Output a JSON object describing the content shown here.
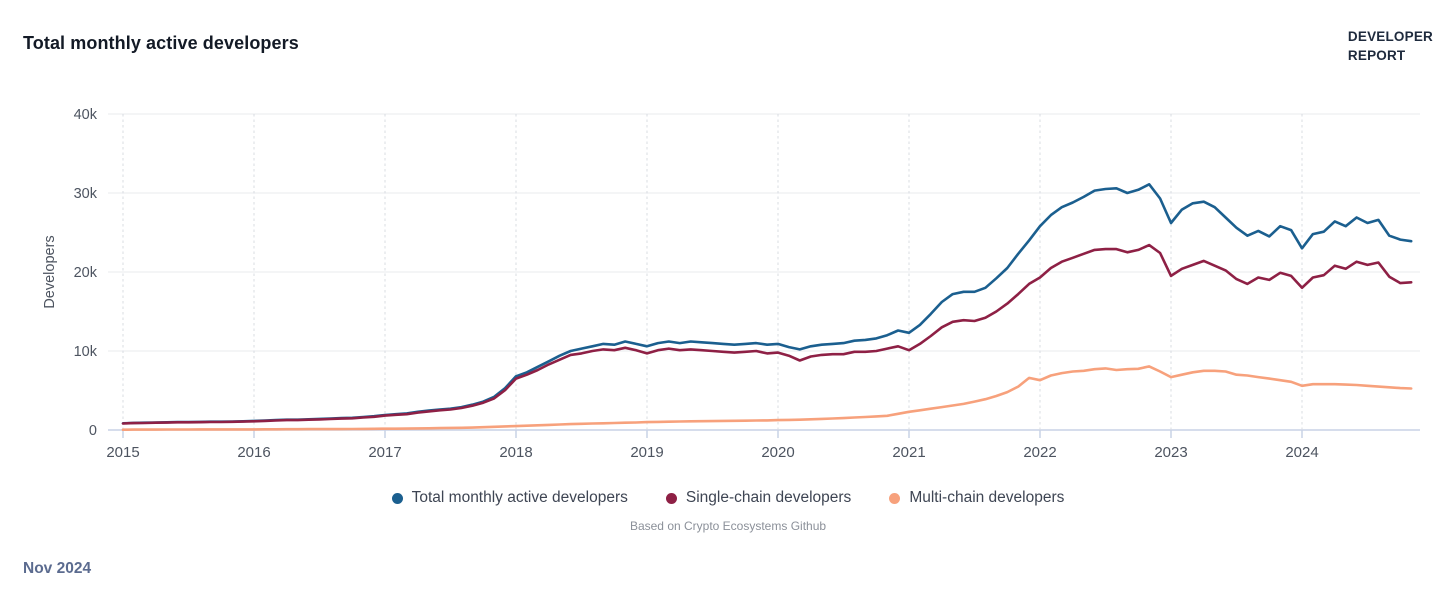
{
  "page": {
    "title": "Total monthly active developers",
    "footer_date": "Nov 2024"
  },
  "logo": {
    "line1": "DEVELOPER",
    "line2": "REPORT"
  },
  "caption": "Based on Crypto Ecosystems Github",
  "legend": {
    "items": [
      {
        "label": "Total monthly active developers",
        "color": "#1b5f8f"
      },
      {
        "label": "Single-chain developers",
        "color": "#8e2045"
      },
      {
        "label": "Multi-chain developers",
        "color": "#f7a17c"
      }
    ]
  },
  "chart_data": {
    "type": "line",
    "title": "Total monthly active developers",
    "ylabel": "Developers",
    "xlabel": "",
    "unit": "thousands of developers",
    "x_start": "2015-01",
    "x_end": "2024-11",
    "grid": "horizontal solid, vertical dashed per year",
    "legend_position": "bottom center",
    "ylim": [
      0,
      40
    ],
    "y_ticks": [
      {
        "v": 0,
        "label": "0"
      },
      {
        "v": 10,
        "label": "10k"
      },
      {
        "v": 20,
        "label": "20k"
      },
      {
        "v": 30,
        "label": "30k"
      },
      {
        "v": 40,
        "label": "40k"
      }
    ],
    "x_ticks": [
      "2015",
      "2016",
      "2017",
      "2018",
      "2019",
      "2020",
      "2021",
      "2022",
      "2023",
      "2024"
    ],
    "series": [
      {
        "name": "Total monthly active developers",
        "color": "#1b5f8f",
        "values": [
          0.85,
          0.9,
          0.92,
          0.95,
          0.97,
          1.0,
          1.0,
          1.02,
          1.05,
          1.05,
          1.08,
          1.1,
          1.15,
          1.2,
          1.25,
          1.3,
          1.3,
          1.35,
          1.4,
          1.45,
          1.5,
          1.55,
          1.65,
          1.75,
          1.9,
          2.0,
          2.1,
          2.3,
          2.45,
          2.6,
          2.7,
          2.9,
          3.2,
          3.6,
          4.2,
          5.3,
          6.8,
          7.3,
          8.0,
          8.7,
          9.4,
          10.0,
          10.3,
          10.6,
          10.9,
          10.8,
          11.2,
          10.9,
          10.6,
          11.0,
          11.2,
          11.0,
          11.2,
          11.1,
          11.0,
          10.9,
          10.8,
          10.9,
          11.0,
          10.8,
          10.9,
          10.5,
          10.2,
          10.6,
          10.8,
          10.9,
          11.0,
          11.3,
          11.4,
          11.6,
          12.0,
          12.6,
          12.3,
          13.3,
          14.7,
          16.2,
          17.2,
          17.5,
          17.5,
          18.0,
          19.2,
          20.5,
          22.3,
          24.0,
          25.8,
          27.2,
          28.2,
          28.8,
          29.5,
          30.3,
          30.5,
          30.6,
          30.0,
          30.4,
          31.1,
          29.3,
          26.2,
          27.9,
          28.7,
          28.9,
          28.2,
          26.9,
          25.6,
          24.6,
          25.2,
          24.5,
          25.8,
          25.3,
          23.0,
          24.8,
          25.1,
          26.4,
          25.8,
          26.9,
          26.2,
          26.6,
          24.6,
          24.1,
          23.9
        ]
      },
      {
        "name": "Single-chain developers",
        "color": "#8e2045",
        "values": [
          0.82,
          0.87,
          0.89,
          0.92,
          0.94,
          0.97,
          0.97,
          0.99,
          1.01,
          1.01,
          1.04,
          1.06,
          1.1,
          1.15,
          1.2,
          1.25,
          1.25,
          1.3,
          1.34,
          1.39,
          1.44,
          1.48,
          1.58,
          1.67,
          1.82,
          1.92,
          2.0,
          2.2,
          2.35,
          2.5,
          2.6,
          2.78,
          3.07,
          3.45,
          4.0,
          5.05,
          6.5,
          7.0,
          7.6,
          8.3,
          8.9,
          9.5,
          9.7,
          10.0,
          10.2,
          10.1,
          10.4,
          10.1,
          9.7,
          10.1,
          10.3,
          10.1,
          10.2,
          10.1,
          10.0,
          9.9,
          9.8,
          9.9,
          10.0,
          9.7,
          9.8,
          9.4,
          8.8,
          9.3,
          9.5,
          9.6,
          9.6,
          9.9,
          9.9,
          10.0,
          10.3,
          10.6,
          10.1,
          10.9,
          11.9,
          13.0,
          13.7,
          13.9,
          13.8,
          14.2,
          15.0,
          16.0,
          17.2,
          18.5,
          19.3,
          20.5,
          21.3,
          21.8,
          22.3,
          22.8,
          22.9,
          22.9,
          22.5,
          22.8,
          23.4,
          22.4,
          19.5,
          20.4,
          20.9,
          21.4,
          20.8,
          20.2,
          19.1,
          18.5,
          19.3,
          19.0,
          19.9,
          19.5,
          18.0,
          19.3,
          19.6,
          20.8,
          20.4,
          21.3,
          20.9,
          21.2,
          19.4,
          18.6,
          18.7
        ]
      },
      {
        "name": "Multi-chain developers",
        "color": "#f7a17c",
        "values": [
          0.04,
          0.05,
          0.05,
          0.05,
          0.06,
          0.06,
          0.06,
          0.07,
          0.07,
          0.07,
          0.08,
          0.08,
          0.08,
          0.09,
          0.09,
          0.1,
          0.1,
          0.11,
          0.11,
          0.12,
          0.12,
          0.13,
          0.14,
          0.15,
          0.16,
          0.17,
          0.18,
          0.2,
          0.22,
          0.24,
          0.26,
          0.28,
          0.31,
          0.35,
          0.4,
          0.45,
          0.5,
          0.55,
          0.6,
          0.65,
          0.7,
          0.75,
          0.78,
          0.82,
          0.85,
          0.88,
          0.92,
          0.95,
          1.0,
          1.02,
          1.05,
          1.08,
          1.1,
          1.12,
          1.13,
          1.15,
          1.17,
          1.18,
          1.2,
          1.22,
          1.25,
          1.28,
          1.3,
          1.35,
          1.4,
          1.45,
          1.5,
          1.58,
          1.65,
          1.72,
          1.8,
          2.05,
          2.3,
          2.5,
          2.7,
          2.9,
          3.1,
          3.3,
          3.6,
          3.9,
          4.3,
          4.8,
          5.5,
          6.6,
          6.3,
          6.9,
          7.2,
          7.4,
          7.5,
          7.7,
          7.8,
          7.6,
          7.7,
          7.75,
          8.05,
          7.4,
          6.7,
          7.0,
          7.3,
          7.5,
          7.5,
          7.4,
          7.0,
          6.9,
          6.7,
          6.5,
          6.3,
          6.1,
          5.6,
          5.8,
          5.8,
          5.8,
          5.75,
          5.7,
          5.6,
          5.5,
          5.4,
          5.3,
          5.25
        ]
      }
    ],
    "colors": {
      "grid_horizontal": "#e9ebee",
      "grid_vertical": "#d8dce2",
      "baseline": "#c8d2e6",
      "tick_text": "#4d5460",
      "axis_title_text": "#4d5460"
    }
  }
}
